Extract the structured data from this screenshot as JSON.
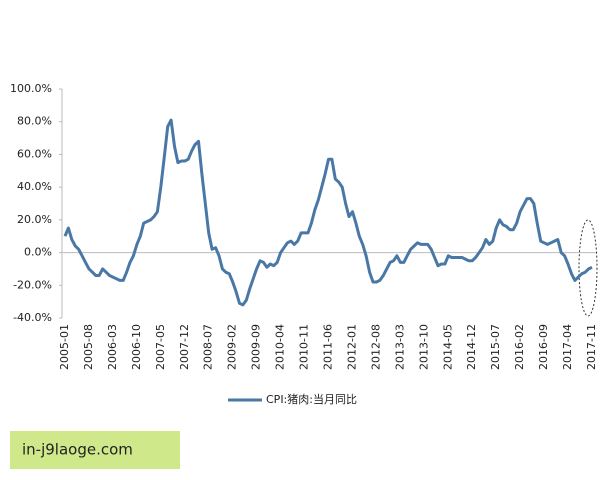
{
  "chart_data": {
    "type": "line",
    "categories": [
      "2005-01",
      null,
      null,
      null,
      null,
      null,
      null,
      "2005-08",
      null,
      null,
      null,
      null,
      null,
      null,
      "2006-03",
      null,
      null,
      null,
      null,
      null,
      null,
      "2006-10",
      null,
      null,
      null,
      null,
      null,
      null,
      "2007-05",
      null,
      null,
      null,
      null,
      null,
      null,
      "2007-12",
      null,
      null,
      null,
      null,
      null,
      null,
      "2008-07",
      null,
      null,
      null,
      null,
      null,
      null,
      "2009-02",
      null,
      null,
      null,
      null,
      null,
      null,
      "2009-09",
      null,
      null,
      null,
      null,
      null,
      null,
      "2010-04",
      null,
      null,
      null,
      null,
      null,
      null,
      "2010-11",
      null,
      null,
      null,
      null,
      null,
      null,
      "2011-06",
      null,
      null,
      null,
      null,
      null,
      null,
      "2012-01",
      null,
      null,
      null,
      null,
      null,
      null,
      "2012-08",
      null,
      null,
      null,
      null,
      null,
      null,
      "2013-03",
      null,
      null,
      null,
      null,
      null,
      null,
      "2013-10",
      null,
      null,
      null,
      null,
      null,
      null,
      "2014-05",
      null,
      null,
      null,
      null,
      null,
      null,
      "2014-12",
      null,
      null,
      null,
      null,
      null,
      null,
      "2015-07",
      null,
      null,
      null,
      null,
      null,
      null,
      "2016-02",
      null,
      null,
      null,
      null,
      null,
      null,
      "2016-09",
      null,
      null,
      null,
      null,
      null,
      null,
      "2017-04",
      null,
      null,
      null,
      null,
      null,
      null,
      "2017-11"
    ],
    "series": [
      {
        "name": "CPI:猪肉:当月同比",
        "color": "#4a78a6",
        "values": [
          10,
          15,
          8,
          4,
          2,
          -2,
          -6,
          -10,
          -12,
          -14,
          -14,
          -10,
          -12,
          -14,
          -15,
          -16,
          -17,
          -17,
          -12,
          -6,
          -2,
          5,
          10,
          18,
          19,
          20,
          22,
          25,
          40,
          58,
          77,
          81,
          65,
          55,
          56,
          56,
          57,
          62,
          66,
          68,
          48,
          30,
          12,
          2,
          3,
          -2,
          -10,
          -12,
          -13,
          -18,
          -24,
          -31,
          -32,
          -29,
          -22,
          -16,
          -10,
          -5,
          -6,
          -9,
          -7,
          -8,
          -6,
          0,
          3,
          6,
          7,
          5,
          7,
          12,
          12,
          12,
          18,
          26,
          32,
          40,
          48,
          57,
          57,
          45,
          43,
          40,
          30,
          22,
          25,
          18,
          10,
          5,
          -2,
          -12,
          -18,
          -18,
          -17,
          -14,
          -10,
          -6,
          -5,
          -2,
          -6,
          -6,
          -2,
          2,
          4,
          6,
          5,
          5,
          5,
          2,
          -3,
          -8,
          -7,
          -7,
          -2,
          -3,
          -3,
          -3,
          -3,
          -4,
          -5,
          -5,
          -3,
          0,
          3,
          8,
          5,
          7,
          15,
          20,
          17,
          16,
          14,
          14,
          18,
          25,
          29,
          33,
          33,
          30,
          18,
          7,
          6,
          5,
          6,
          7,
          8,
          0,
          -2,
          -7,
          -13,
          -17,
          -15,
          -13,
          -12,
          -10,
          -9
        ]
      }
    ],
    "ylim": [
      -40,
      100
    ],
    "yticks": [
      {
        "value": -40,
        "label": "-40.0%"
      },
      {
        "value": -20,
        "label": "-20.0%"
      },
      {
        "value": 0,
        "label": "0.0%"
      },
      {
        "value": 20,
        "label": "20.0%"
      },
      {
        "value": 40,
        "label": "40.0%"
      },
      {
        "value": 60,
        "label": "60.0%"
      },
      {
        "value": 80,
        "label": "80.0%"
      },
      {
        "value": 100,
        "label": "100.0%"
      }
    ],
    "grid": false,
    "legend": "bottom"
  },
  "watermark": "in-j9laoge.com"
}
